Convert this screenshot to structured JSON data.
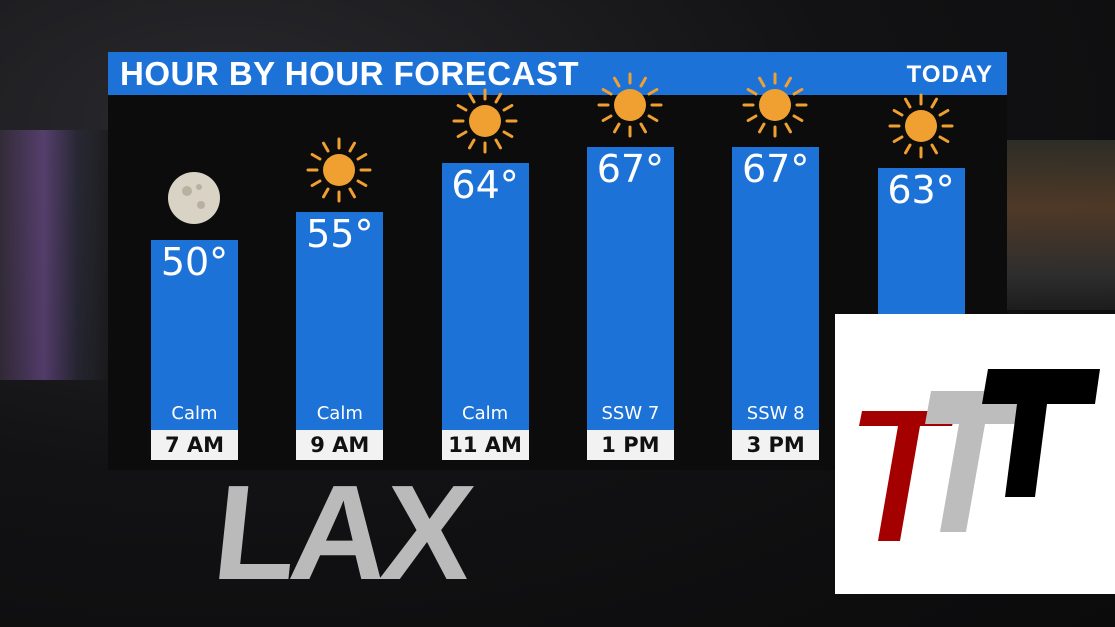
{
  "background_sign": "LAX",
  "header": {
    "title": "HOUR BY HOUR FORECAST",
    "period": "TODAY"
  },
  "colors": {
    "bar": "#1d72d8",
    "header": "#1d72d8",
    "sun": "#f0a030",
    "moon": "#d9d3c5"
  },
  "chart_data": {
    "type": "bar",
    "title": "HOUR BY HOUR FORECAST",
    "categories": [
      "7 AM",
      "9 AM",
      "11 AM",
      "1 PM",
      "3 PM",
      ""
    ],
    "values": [
      50,
      55,
      64,
      67,
      67,
      63
    ],
    "value_labels": [
      "50°",
      "55°",
      "64°",
      "67°",
      "67°",
      "63°"
    ],
    "wind": [
      "Calm",
      "Calm",
      "Calm",
      "SSW 7",
      "SSW 8",
      ""
    ],
    "icons": [
      "moon-icon",
      "sun-icon",
      "sun-icon",
      "sun-icon",
      "sun-icon",
      "sun-icon"
    ],
    "unit": "°F"
  },
  "logo": {
    "text": "TTT",
    "colors": [
      "#a50000",
      "#bdbdbd",
      "#000000"
    ]
  }
}
